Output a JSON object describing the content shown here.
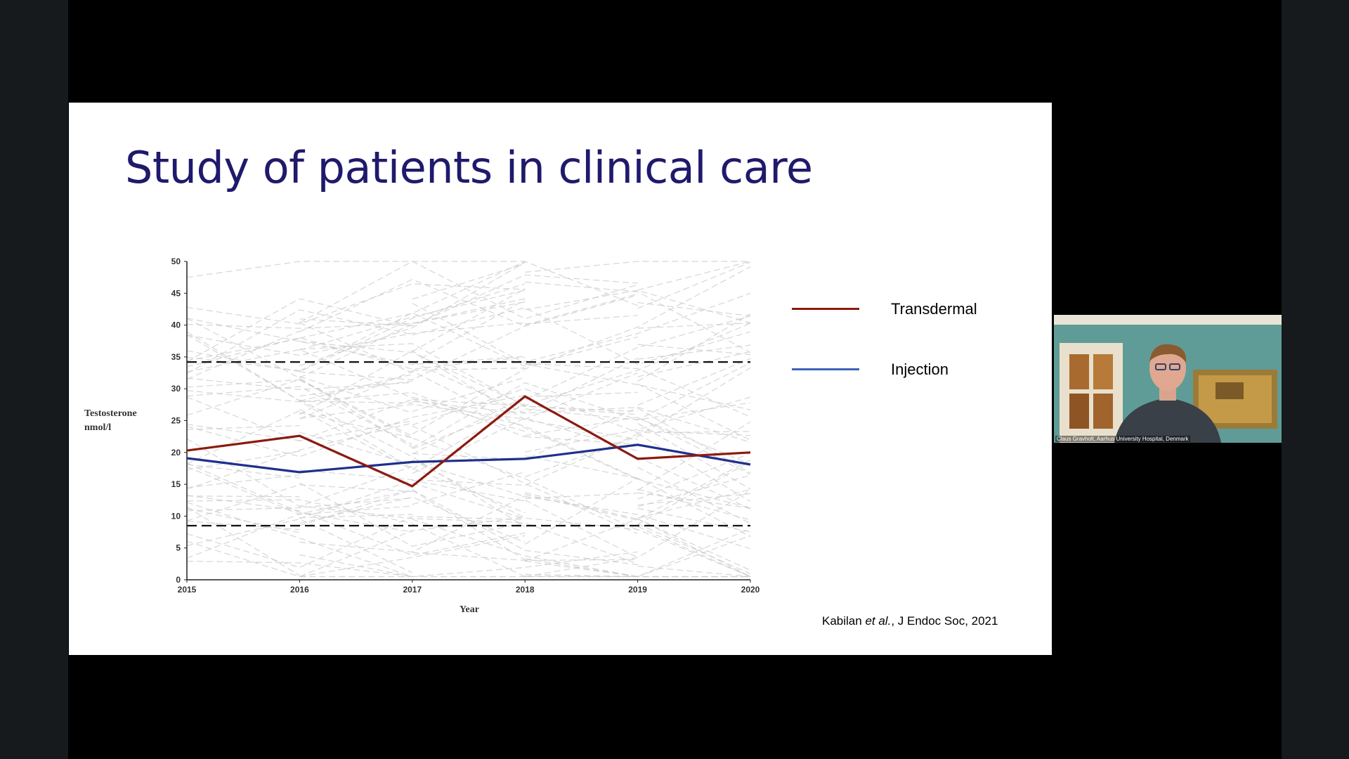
{
  "slide": {
    "title": "Study of patients in clinical care",
    "legend": {
      "transdermal_label": "Transdermal",
      "injection_label": "Injection"
    },
    "citation": {
      "authors": "Kabilan",
      "etal": "et al.",
      "rest": ", J Endoc Soc, 2021"
    }
  },
  "video": {
    "participant_caption": "Claus Gravholt, Aarhus University Hospital, Denmark"
  },
  "colors": {
    "title": "#1f1a6b",
    "transdermal": "#8b1a10",
    "injection": "#1f2f8c",
    "individual_lines": "#c8c8c8",
    "reference_lines": "#111111"
  },
  "chart_data": {
    "type": "line",
    "xlabel": "Year",
    "ylabel": "Testosterone nmol/l",
    "ylabel_lines": [
      "Testosterone",
      "nmol/l"
    ],
    "x": [
      2015,
      2016,
      2017,
      2018,
      2019,
      2020
    ],
    "x_tick_labels": [
      "2015",
      "2016",
      "2017",
      "2018",
      "2019",
      "2020"
    ],
    "ylim": [
      0,
      50
    ],
    "y_ticks": [
      0,
      5,
      10,
      15,
      20,
      25,
      30,
      35,
      40,
      45,
      50
    ],
    "series": [
      {
        "name": "Transdermal",
        "values": [
          20.3,
          22.6,
          14.7,
          28.8,
          19.0,
          20.0
        ]
      },
      {
        "name": "Injection",
        "values": [
          19.1,
          16.9,
          18.5,
          19.0,
          21.2,
          18.1
        ]
      }
    ],
    "reference_lines": [
      8.5,
      34.2
    ],
    "background_individual_patient_lines": true
  }
}
